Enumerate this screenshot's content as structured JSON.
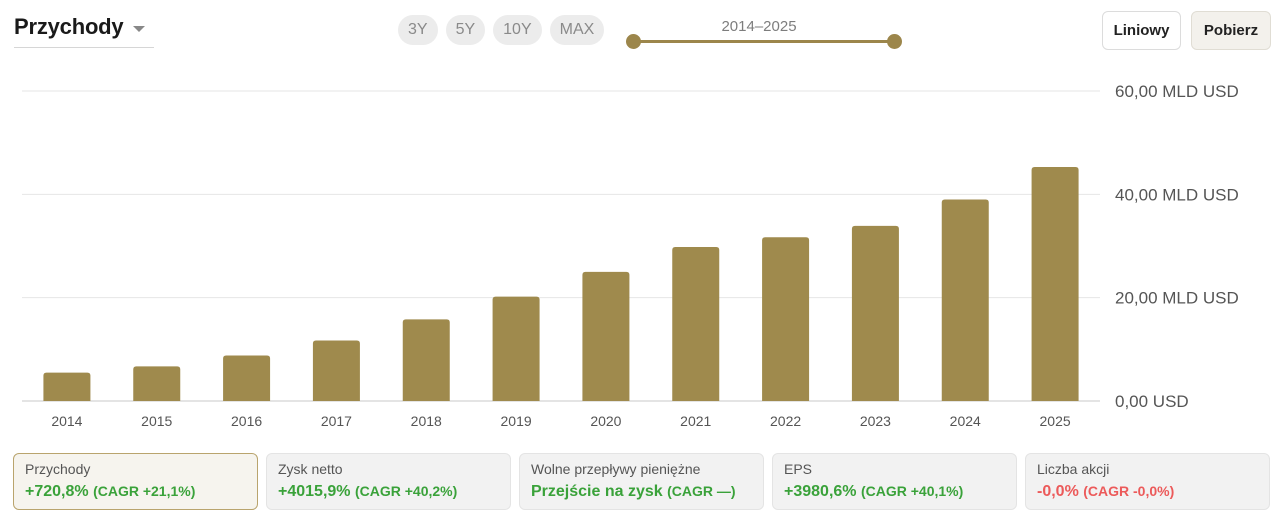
{
  "header": {
    "metric_title": "Przychody",
    "range_buttons": [
      "3Y",
      "5Y",
      "10Y",
      "MAX"
    ],
    "range_label": "2014–2025",
    "linear_label": "Liniowy",
    "download_label": "Pobierz"
  },
  "colors": {
    "accent": "#9c864b",
    "bar": "#9f8a4d",
    "positive": "#3aa23a",
    "negative": "#ec5a5a"
  },
  "chart_data": {
    "type": "bar",
    "categories": [
      "2014",
      "2015",
      "2016",
      "2017",
      "2018",
      "2019",
      "2020",
      "2021",
      "2022",
      "2023",
      "2024",
      "2025"
    ],
    "values": [
      5.5,
      6.7,
      8.8,
      11.7,
      15.8,
      20.2,
      25.0,
      29.8,
      31.7,
      33.9,
      39.0,
      45.3
    ],
    "unit": "MLD USD",
    "ylim": [
      0,
      60
    ],
    "yticks": [
      0,
      20,
      40,
      60
    ],
    "ytick_labels": [
      "0,00 USD",
      "20,00 MLD USD",
      "40,00 MLD USD",
      "60,00 MLD USD"
    ],
    "y_axis_position": "right",
    "grid": true
  },
  "cards": [
    {
      "name": "Przychody",
      "value": "+720,8%",
      "cagr": "(CAGR +21,1%)",
      "tone": "pos",
      "active": true
    },
    {
      "name": "Zysk netto",
      "value": "+4015,9%",
      "cagr": "(CAGR +40,2%)",
      "tone": "pos",
      "active": false
    },
    {
      "name": "Wolne przepływy pieniężne",
      "value": "Przejście na zysk",
      "cagr": "(CAGR —)",
      "tone": "pos",
      "active": false
    },
    {
      "name": "EPS",
      "value": "+3980,6%",
      "cagr": "(CAGR +40,1%)",
      "tone": "pos",
      "active": false
    },
    {
      "name": "Liczba akcji",
      "value": "-0,0%",
      "cagr": "(CAGR -0,0%)",
      "tone": "neg",
      "active": false
    }
  ]
}
